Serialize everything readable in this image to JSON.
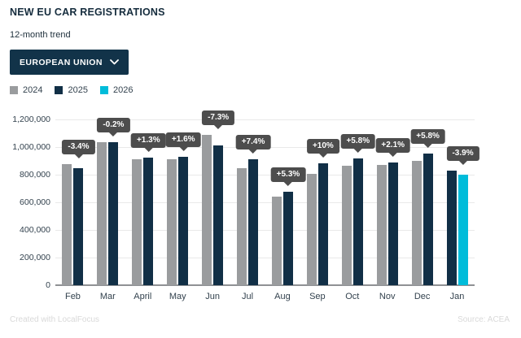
{
  "header": {
    "title": "NEW EU CAR REGISTRATIONS",
    "subtitle": "12-month trend"
  },
  "dropdown": {
    "label": "EUROPEAN UNION"
  },
  "legend": {
    "items": [
      {
        "label": "2024",
        "color": "#9a9c9e"
      },
      {
        "label": "2025",
        "color": "#112f46"
      },
      {
        "label": "2026",
        "color": "#00bcda"
      }
    ]
  },
  "chart_data": {
    "type": "bar",
    "title": "NEW EU CAR REGISTRATIONS",
    "categories": [
      "Feb",
      "Mar",
      "April",
      "May",
      "Jun",
      "Jul",
      "Aug",
      "Sep",
      "Oct",
      "Nov",
      "Dec",
      "Jan"
    ],
    "series": [
      {
        "name": "2024",
        "color": "#9a9c9e",
        "values": [
          878000,
          1037000,
          912000,
          912000,
          1089000,
          850000,
          640000,
          805000,
          866000,
          870000,
          902000,
          null
        ]
      },
      {
        "name": "2025",
        "color": "#112f46",
        "values": [
          848000,
          1035000,
          924000,
          927000,
          1010000,
          913000,
          674000,
          885000,
          916000,
          888000,
          954000,
          830000
        ]
      },
      {
        "name": "2026",
        "color": "#00bcda",
        "values": [
          null,
          null,
          null,
          null,
          null,
          null,
          null,
          null,
          null,
          null,
          null,
          798000
        ]
      }
    ],
    "bar_labels": [
      "-3.4%",
      "-0.2%",
      "+1.3%",
      "+1.6%",
      "-7.3%",
      "+7.4%",
      "+5.3%",
      "+10%",
      "+5.8%",
      "+2.1%",
      "+5.8%",
      "-3.9%"
    ],
    "xlabel": "",
    "ylabel": "",
    "ylim": [
      0,
      1200000
    ],
    "ytick_step": 200000,
    "ytick_labels": [
      "0",
      "200,000",
      "400,000",
      "600,000",
      "800,000",
      "1,000,000",
      "1,200,000"
    ],
    "grid": true,
    "legend_position": "top-left"
  },
  "colors": {
    "title_text": "#152c3d",
    "subtitle_text": "#20313d",
    "dropdown_bg": "#123349",
    "dropdown_text": "#ffffff",
    "axis_text": "#33424e",
    "gridline": "#e9e9e9",
    "baseline": "#8f9194",
    "bubble_bg": "#4d4d4d",
    "bubble_text": "#ffffff",
    "footer_text": "#d9d9d9"
  },
  "footer": {
    "credit": "Created with LocalFocus",
    "source": "Source: ACEA"
  }
}
